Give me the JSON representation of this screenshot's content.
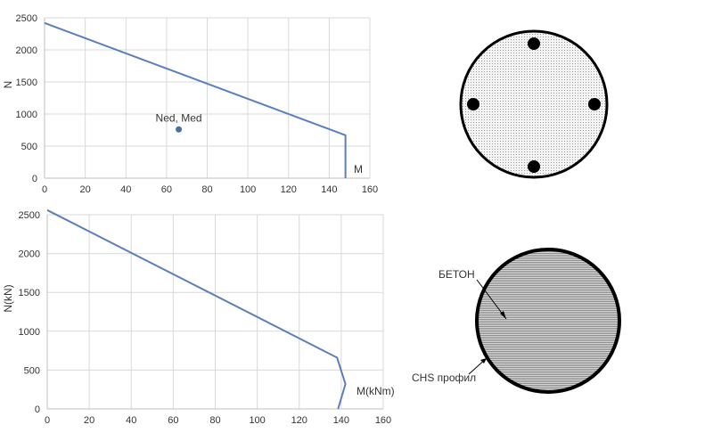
{
  "chart_data": [
    {
      "type": "line",
      "title": "",
      "xlabel": "M",
      "ylabel": "N",
      "xlim": [
        0,
        160
      ],
      "ylim": [
        0,
        2500
      ],
      "xticks": [
        "0",
        "20",
        "40",
        "60",
        "80",
        "100",
        "120",
        "140",
        "160"
      ],
      "yticks": [
        "0",
        "500",
        "1000",
        "1500",
        "2000",
        "2500"
      ],
      "grid": true,
      "series": [
        {
          "x": [
            0,
            148,
            148
          ],
          "y": [
            2420,
            670,
            0
          ],
          "color": "#5b7fb8"
        }
      ],
      "points": [
        {
          "label": "Ned, Med",
          "x": 66,
          "y": 760,
          "color": "#4a6fa5"
        }
      ]
    },
    {
      "type": "line",
      "title": "",
      "xlabel": "M(kNm)",
      "ylabel": "N(kN)",
      "xlim": [
        0,
        160
      ],
      "ylim": [
        0,
        2500
      ],
      "xticks": [
        "0",
        "20",
        "40",
        "60",
        "80",
        "100",
        "120",
        "140",
        "160"
      ],
      "yticks": [
        "0",
        "500",
        "1000",
        "1500",
        "2000",
        "2500"
      ],
      "grid": true,
      "series": [
        {
          "x": [
            0,
            138,
            142,
            138.5
          ],
          "y": [
            2560,
            660,
            320,
            0
          ],
          "color": "#5b7fb8"
        }
      ]
    }
  ],
  "diagrams": {
    "rc_section": {
      "bars": 4
    },
    "cfst_section": {
      "concrete_label": "БЕТОН",
      "profile_label": "CHS профил"
    }
  }
}
